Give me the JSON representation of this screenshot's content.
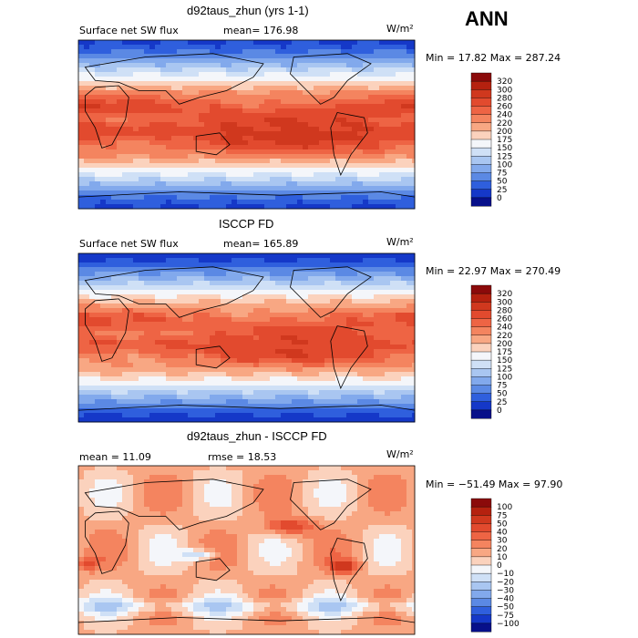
{
  "season": "ANN",
  "unit_label": "W/m²",
  "chart_data": [
    {
      "type": "heatmap",
      "title": "d92taus_zhun (yrs 1-1)",
      "variable": "Surface net SW flux",
      "stats_left": "mean=  176.98",
      "minmax": "Min =  17.82  Max =  287.24",
      "values": {
        "mean": 176.98,
        "min": 17.82,
        "max": 287.24
      },
      "levels": [
        "320",
        "300",
        "280",
        "260",
        "240",
        "220",
        "200",
        "175",
        "150",
        "125",
        "100",
        "75",
        "50",
        "25",
        "0"
      ],
      "colors": [
        "#8b0a0a",
        "#b5210f",
        "#d0381e",
        "#e24a2e",
        "#ee6444",
        "#f4845f",
        "#f8a783",
        "#fbd2bd",
        "#f4f6fa",
        "#cfe0f6",
        "#a9c6f1",
        "#82a9ec",
        "#5b89e4",
        "#2f5fdd",
        "#1538c8",
        "#07108a"
      ]
    },
    {
      "type": "heatmap",
      "title": "ISCCP FD",
      "variable": "Surface net SW flux",
      "stats_left": "mean=  165.89",
      "minmax": "Min =  22.97  Max =  270.49",
      "values": {
        "mean": 165.89,
        "min": 22.97,
        "max": 270.49
      },
      "levels": [
        "320",
        "300",
        "280",
        "260",
        "240",
        "220",
        "200",
        "175",
        "150",
        "125",
        "100",
        "75",
        "50",
        "25",
        "0"
      ],
      "colors": [
        "#8b0a0a",
        "#b5210f",
        "#d0381e",
        "#e24a2e",
        "#ee6444",
        "#f4845f",
        "#f8a783",
        "#fbd2bd",
        "#f4f6fa",
        "#cfe0f6",
        "#a9c6f1",
        "#82a9ec",
        "#5b89e4",
        "#2f5fdd",
        "#1538c8",
        "#07108a"
      ]
    },
    {
      "type": "heatmap",
      "title": "d92taus_zhun - ISCCP FD",
      "stats_left": "mean =   11.09",
      "stats_mid": "rmse =   18.53",
      "minmax": "Min = −51.49  Max =   97.90",
      "values": {
        "mean": 11.09,
        "rmse": 18.53,
        "min": -51.49,
        "max": 97.9
      },
      "levels": [
        "100",
        "75",
        "50",
        "40",
        "30",
        "20",
        "10",
        "0",
        "−10",
        "−20",
        "−30",
        "−40",
        "−50",
        "−75",
        "−100"
      ],
      "colors": [
        "#8b0a0a",
        "#b5210f",
        "#d0381e",
        "#e24a2e",
        "#ee6444",
        "#f4845f",
        "#f8a783",
        "#fbd2bd",
        "#f4f6fa",
        "#cfe0f6",
        "#a9c6f1",
        "#82a9ec",
        "#5b89e4",
        "#2f5fdd",
        "#1538c8",
        "#07108a"
      ]
    }
  ]
}
